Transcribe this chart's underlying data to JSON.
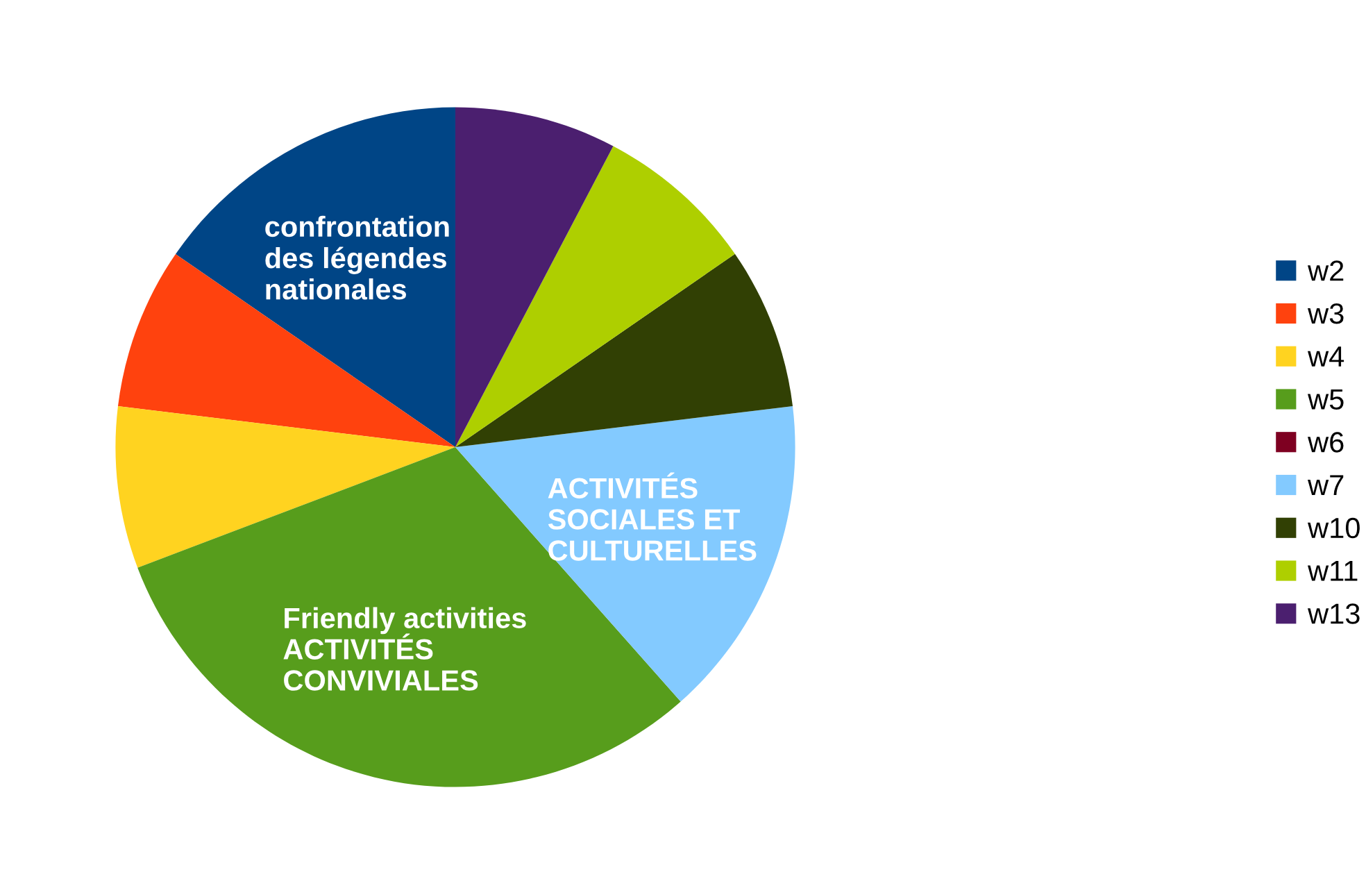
{
  "chart_data": {
    "type": "pie",
    "categories": [
      "w2",
      "w3",
      "w4",
      "w5",
      "w6",
      "w7",
      "w10",
      "w11",
      "w13"
    ],
    "values": [
      15.39,
      7.69,
      7.69,
      30.77,
      0,
      15.38,
      7.7,
      7.69,
      7.69
    ],
    "colors": [
      "#004586",
      "#ff420e",
      "#ffd320",
      "#579d1c",
      "#7e0021",
      "#83caff",
      "#314004",
      "#aecf00",
      "#4b1f6f"
    ],
    "legend": "right",
    "annotations": [
      {
        "text": "confrontation\ndes légendes\nnationales",
        "x": "w2"
      },
      {
        "text": "Friendly activities\nACTIVITÉS\nCONVIVIALES",
        "x": "w5"
      },
      {
        "text": "ACTIVITÉS\nSOCIALES ET\nCULTURELLES",
        "x": "w7"
      }
    ]
  }
}
